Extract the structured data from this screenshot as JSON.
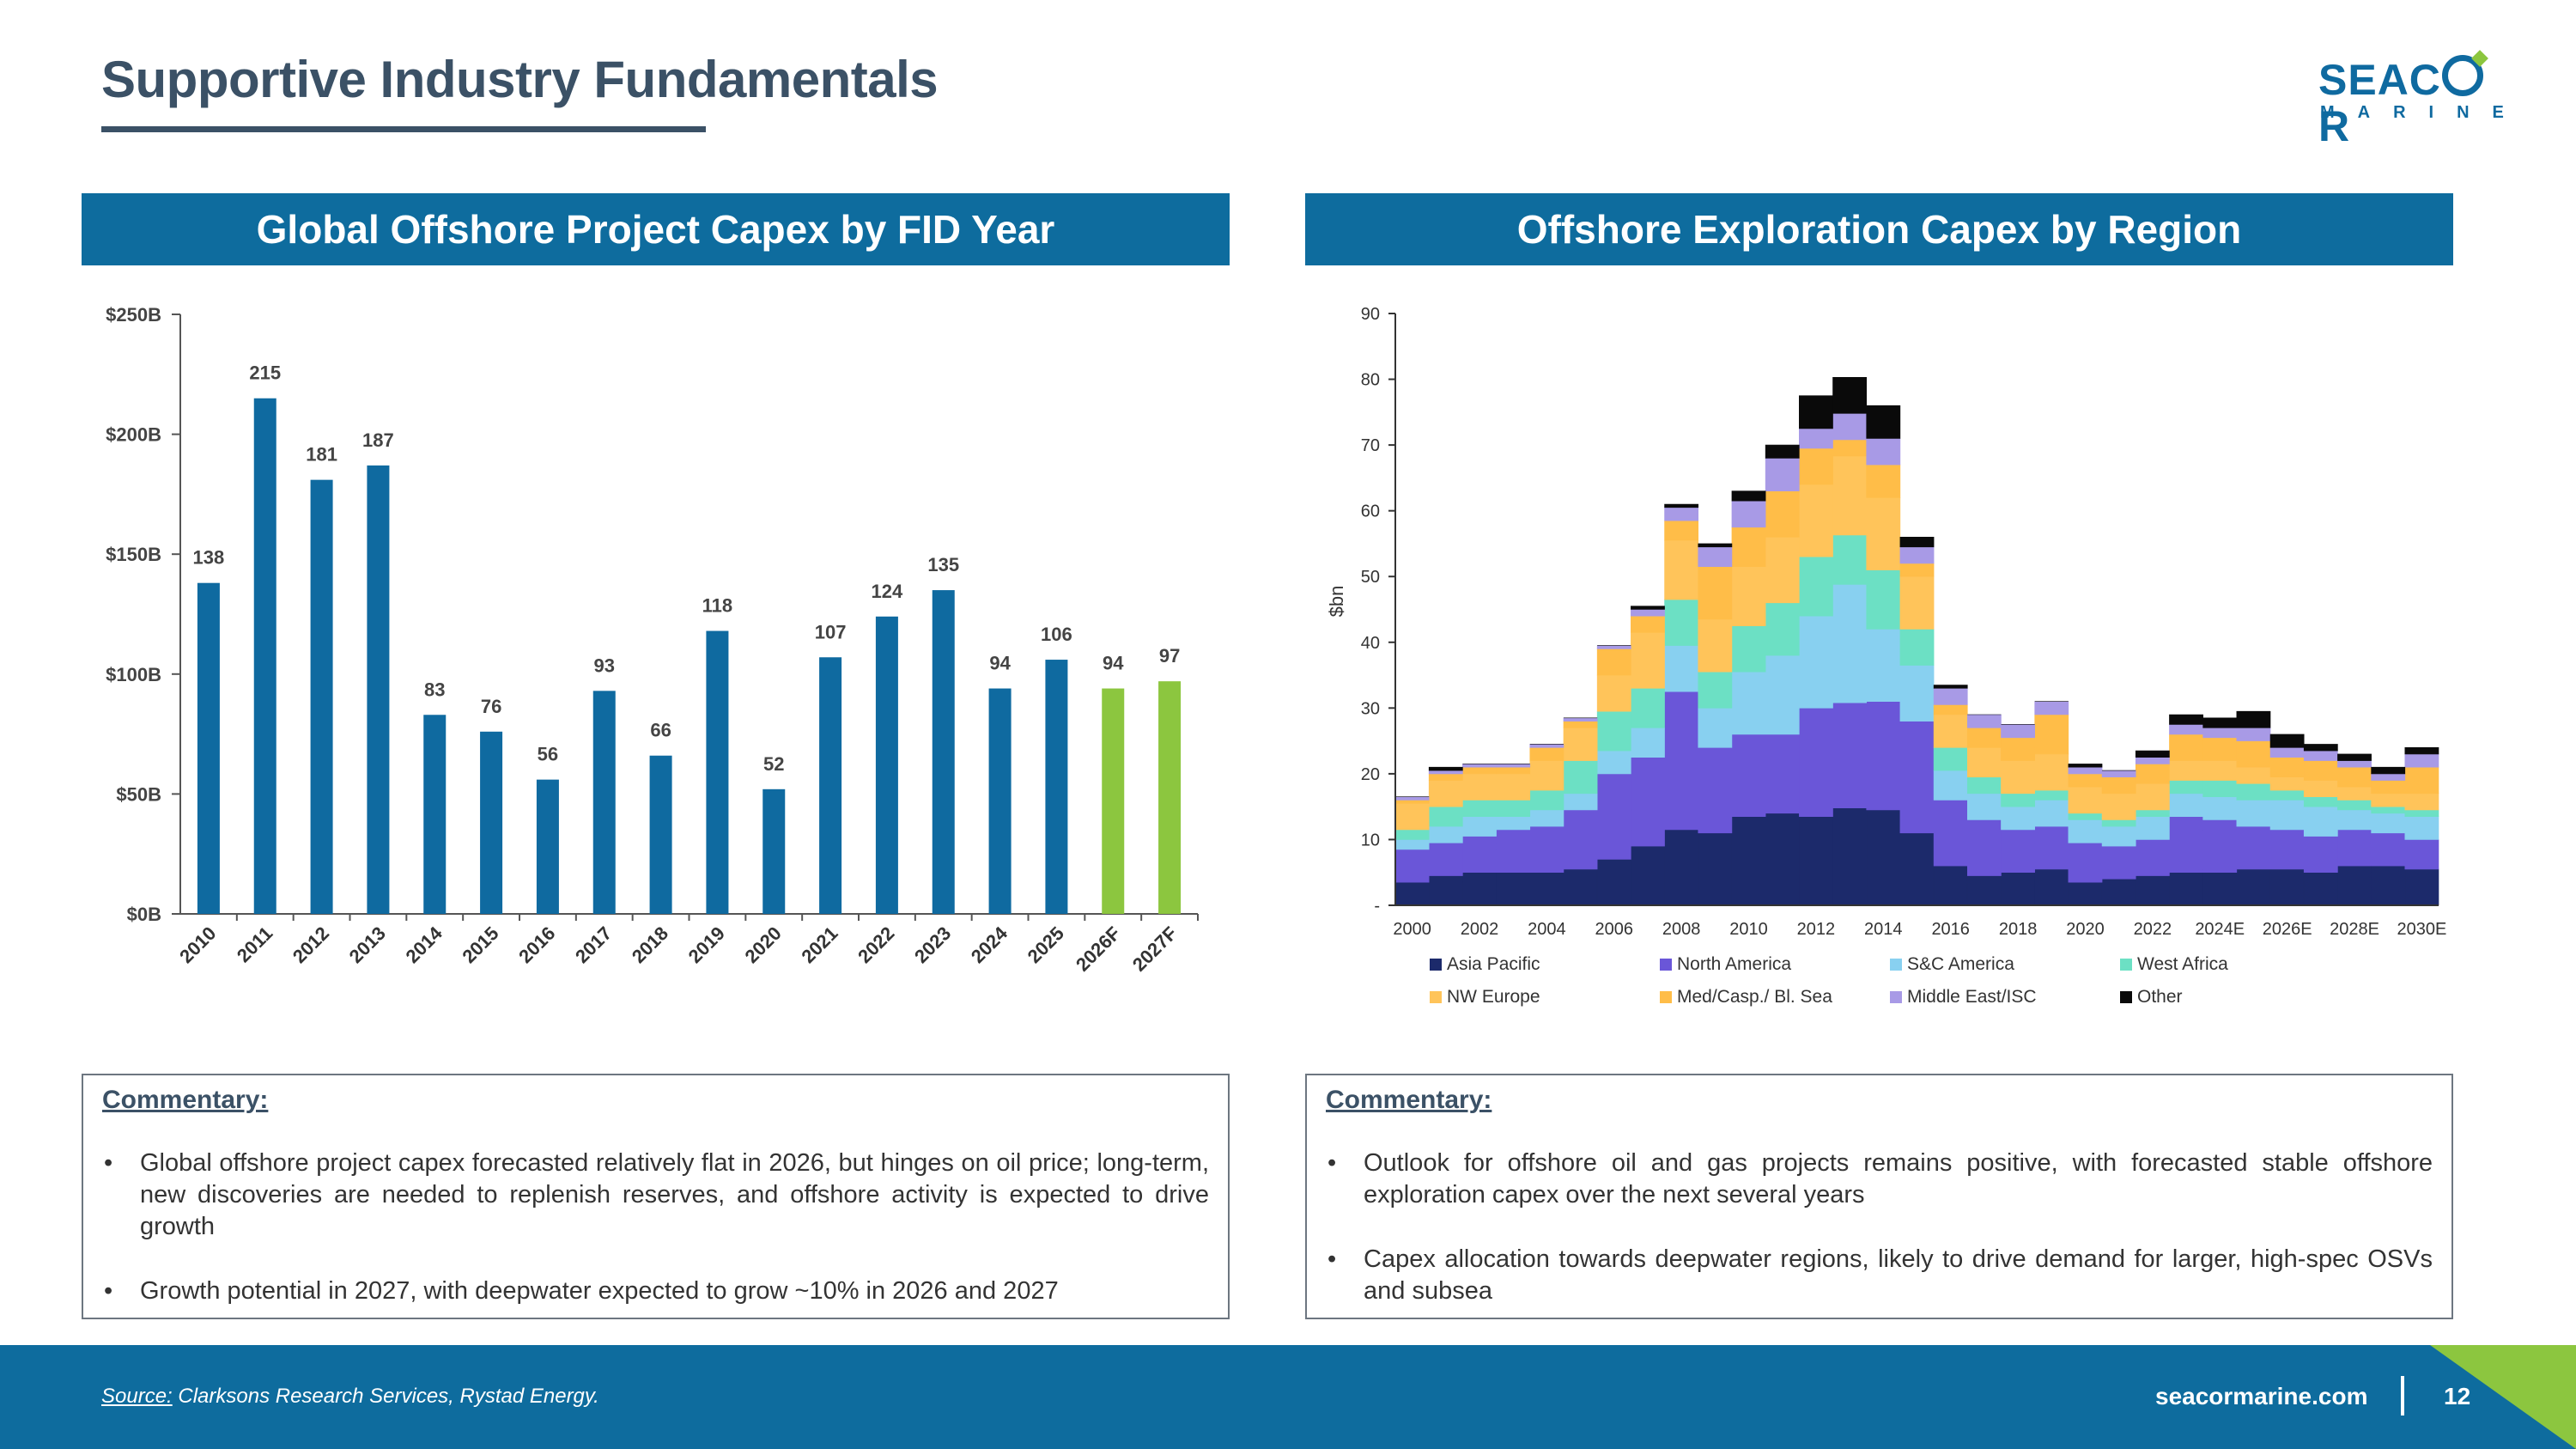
{
  "title": "Supportive Industry Fundamentals",
  "logo": {
    "top": "SEACOR",
    "top_pre": "SEAC",
    "top_post": "R",
    "bottom": "MARINE"
  },
  "colors": {
    "brand_blue": "#0e6c9e",
    "bar_blue": "#0f6aa0",
    "forecast_green": "#8cc63f",
    "title_gray": "#3b5166"
  },
  "left_panel": {
    "header": "Global Offshore Project Capex by FID Year",
    "commentary_title": "Commentary:",
    "bullets": [
      "Global offshore project capex forecasted relatively flat in 2026, but hinges on oil price; long-term, new discoveries are needed to replenish reserves, and offshore activity is expected to drive growth",
      "Growth potential in 2027, with deepwater expected to grow ~10% in 2026 and 2027"
    ]
  },
  "right_panel": {
    "header": "Offshore Exploration Capex by Region",
    "commentary_title": "Commentary:",
    "bullets": [
      "Outlook for offshore oil and gas projects remains positive, with forecasted stable offshore exploration capex over the next several years",
      "Capex allocation towards deepwater regions, likely to drive demand for larger, high-spec OSVs and subsea"
    ]
  },
  "footer": {
    "source_label": "Source:",
    "source_text": " Clarksons Research Services, Rystad Energy.",
    "site": "seacormarine.com",
    "page": "12"
  },
  "chart_data": [
    {
      "type": "bar",
      "title": "Global Offshore Project Capex by FID Year",
      "categories": [
        "2010",
        "2011",
        "2012",
        "2013",
        "2014",
        "2015",
        "2016",
        "2017",
        "2018",
        "2019",
        "2020",
        "2021",
        "2022",
        "2023",
        "2024",
        "2025",
        "2026F",
        "2027F"
      ],
      "values": [
        138,
        215,
        181,
        187,
        83,
        76,
        56,
        93,
        66,
        118,
        52,
        107,
        124,
        135,
        94,
        106,
        94,
        97
      ],
      "forecast": [
        false,
        false,
        false,
        false,
        false,
        false,
        false,
        false,
        false,
        false,
        false,
        false,
        false,
        false,
        false,
        false,
        true,
        true
      ],
      "ylim": [
        0,
        250
      ],
      "yticks": [
        0,
        50,
        100,
        150,
        200,
        250
      ],
      "ytick_labels": [
        "$0B",
        "$50B",
        "$100B",
        "$150B",
        "$200B",
        "$250B"
      ],
      "xlabel": "",
      "ylabel": ""
    },
    {
      "type": "area",
      "stacked": true,
      "title": "Offshore Exploration Capex by Region",
      "ylabel": "$bn",
      "xlabel": "",
      "ylim": [
        0,
        90
      ],
      "yticks": [
        0,
        10,
        20,
        30,
        40,
        50,
        60,
        70,
        80,
        90
      ],
      "ytick_labels": [
        "-",
        "10",
        "20",
        "30",
        "40",
        "50",
        "60",
        "70",
        "80",
        "90"
      ],
      "x": [
        "2000",
        "2001",
        "2002",
        "2003",
        "2004",
        "2005",
        "2006",
        "2007",
        "2008",
        "2009",
        "2010",
        "2011",
        "2012",
        "2013",
        "2014",
        "2015",
        "2016",
        "2017",
        "2018",
        "2019",
        "2020",
        "2021",
        "2022",
        "2023",
        "2024E",
        "2025E",
        "2026E",
        "2027E",
        "2028E",
        "2029E",
        "2030E"
      ],
      "xtick_labels": [
        "2000",
        "2002",
        "2004",
        "2006",
        "2008",
        "2010",
        "2012",
        "2014",
        "2016",
        "2018",
        "2020",
        "2022",
        "2024E",
        "2026E",
        "2028E",
        "2030E"
      ],
      "legend": "bottom",
      "series": [
        {
          "name": "Asia Pacific",
          "color": "#1c2a6b",
          "values": [
            3.5,
            4.5,
            5,
            5,
            5,
            5.5,
            7,
            9,
            11.5,
            11,
            13.5,
            14,
            13.5,
            14.8,
            14.5,
            11,
            6,
            4.5,
            5,
            5.5,
            3.5,
            4,
            4.5,
            5,
            5,
            5.5,
            5.5,
            5,
            6,
            6,
            5.5
          ]
        },
        {
          "name": "North America",
          "color": "#6a56d8",
          "values": [
            5,
            5,
            5.5,
            6.5,
            7,
            9,
            13,
            13.5,
            21,
            13,
            12.5,
            12,
            16.5,
            16,
            16.5,
            17,
            10,
            8.5,
            6.5,
            6.5,
            6,
            5,
            5.5,
            8.5,
            8,
            6.5,
            6,
            5.5,
            5.5,
            5,
            4.5
          ]
        },
        {
          "name": "S&C America",
          "color": "#88d0f0",
          "values": [
            1.5,
            2.5,
            3,
            2,
            2.5,
            2.5,
            3.5,
            4.5,
            7,
            6,
            9.5,
            12,
            14,
            18,
            11,
            8.5,
            4.5,
            4,
            3.5,
            4,
            3.5,
            3,
            3.5,
            3.5,
            3.5,
            4,
            4.5,
            4.5,
            3,
            3,
            3.5
          ]
        },
        {
          "name": "West Africa",
          "color": "#6ce0c4",
          "values": [
            1.5,
            3,
            2.5,
            2.5,
            3,
            5,
            6,
            6,
            7,
            5.5,
            7,
            8,
            9,
            7.5,
            9,
            5.5,
            3.5,
            2.5,
            2,
            1.5,
            1,
            1,
            1,
            2,
            2.5,
            2.5,
            1.5,
            1.5,
            1.5,
            1,
            1
          ]
        },
        {
          "name": "NW Europe",
          "color": "#ffc45a",
          "values": [
            4,
            4,
            4,
            4,
            4.5,
            5,
            5.5,
            8.5,
            9,
            8,
            9,
            10,
            11,
            12,
            11,
            8,
            5,
            4.5,
            5,
            5.5,
            4,
            4,
            4,
            3,
            3,
            2.5,
            2,
            2.5,
            2,
            2,
            2.5
          ]
        },
        {
          "name": "Med/Casp./ Bl. Sea",
          "color": "#ffbd48",
          "values": [
            0.5,
            1,
            1,
            1,
            2,
            1,
            4,
            2.5,
            3,
            8,
            6,
            7,
            5.5,
            2.5,
            5,
            2,
            1.5,
            3,
            3.5,
            6,
            2,
            2.5,
            3,
            4,
            3.5,
            4,
            3,
            3,
            3,
            2,
            4
          ]
        },
        {
          "name": "Middle East/ISC",
          "color": "#a89ae6",
          "values": [
            0.5,
            0.5,
            0.5,
            0.5,
            0.5,
            0.5,
            0.5,
            1,
            2,
            3,
            4,
            5,
            3,
            4,
            4,
            2.5,
            2.5,
            2,
            2,
            2,
            1,
            1,
            1,
            1.5,
            1.5,
            2,
            1.5,
            1.5,
            1,
            1,
            2
          ]
        },
        {
          "name": "Other",
          "color": "#0a0a0a",
          "values": [
            0,
            0.5,
            0,
            0,
            0,
            0,
            0,
            0.5,
            0.5,
            0.5,
            1.5,
            2,
            5,
            5.5,
            5,
            1.5,
            0.5,
            0,
            0,
            0,
            0.5,
            0,
            1,
            1.5,
            1.5,
            2.5,
            2,
            1,
            1,
            1,
            1
          ]
        }
      ]
    }
  ]
}
